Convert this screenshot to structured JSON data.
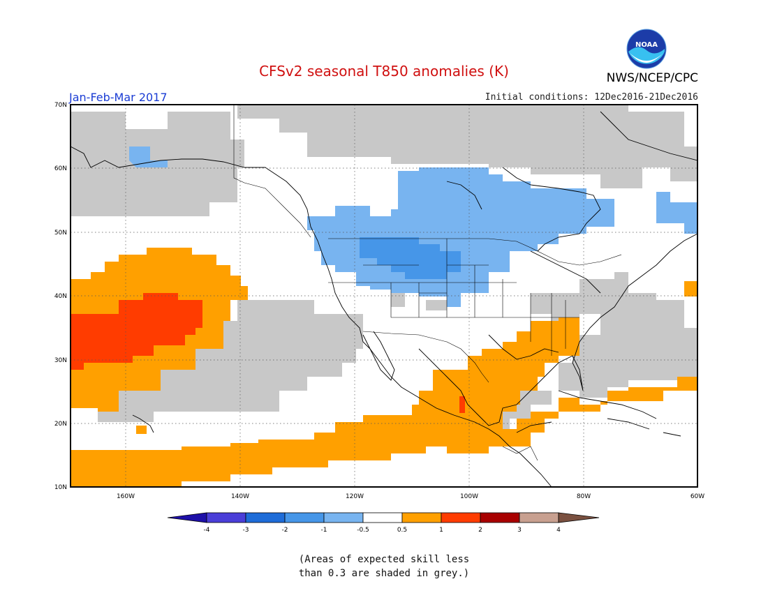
{
  "header": {
    "title": "CFSv2 seasonal T850 anomalies (K)",
    "agency": "NWS/NCEP/CPC",
    "logo_text": "NOAA",
    "period": "Jan-Feb-Mar 2017",
    "initial_conditions": "Initial conditions: 12Dec2016-21Dec2016"
  },
  "map": {
    "lat_labels": [
      "70N",
      "60N",
      "50N",
      "40N",
      "30N",
      "20N",
      "10N"
    ],
    "lon_labels": [
      "160W",
      "140W",
      "120W",
      "100W",
      "80W",
      "60W"
    ],
    "colors": {
      "grey": "#c8c8c8",
      "neg_0_5_to_1": "#78b4f0",
      "neg_1_to_2": "#4696e8",
      "pos_0_5_to_1": "#ffa000",
      "pos_1_to_2": "#ff3c00"
    }
  },
  "colorbar": {
    "labels": [
      "-4",
      "-3",
      "-2",
      "-1",
      "-0.5",
      "0.5",
      "1",
      "2",
      "3",
      "4"
    ],
    "colors": [
      "#1e10a8",
      "#4a3ed8",
      "#1e6cd8",
      "#4696e8",
      "#78b4f0",
      "#ffffff",
      "#ffa000",
      "#ff3c00",
      "#a80000",
      "#c8a090",
      "#7a5040"
    ]
  },
  "note": {
    "line1": "(Areas of expected skill less",
    "line2": "than 0.3 are shaded in grey.)"
  }
}
